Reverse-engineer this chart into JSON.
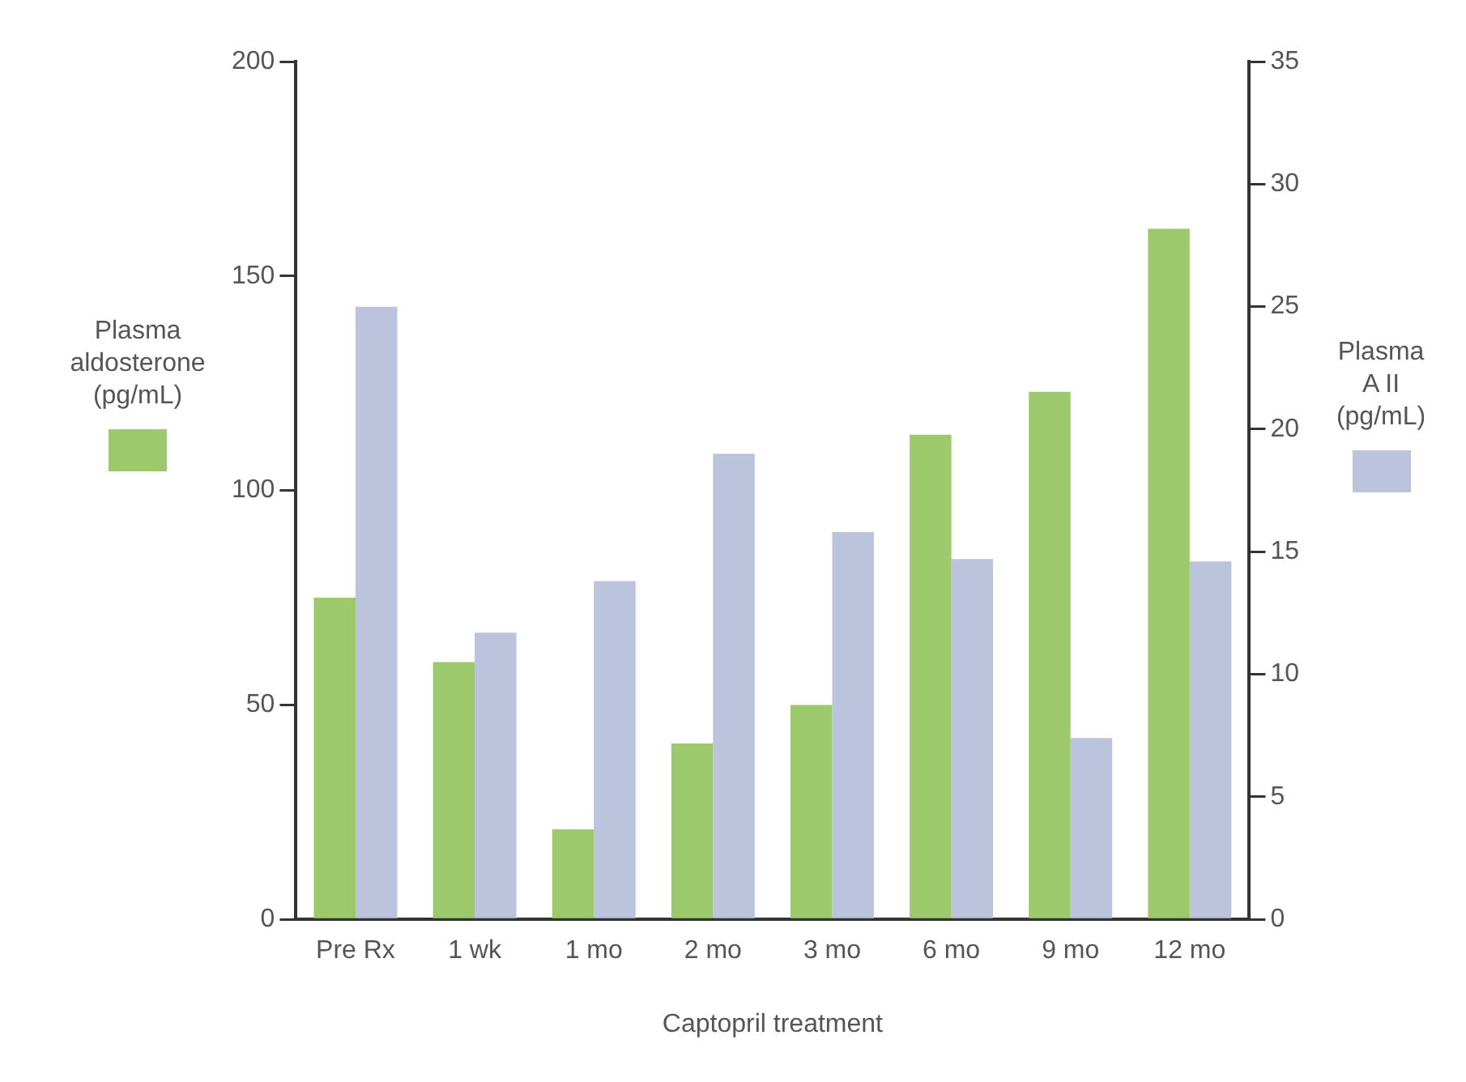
{
  "chart_data": {
    "type": "bar",
    "xlabel": "Captopril treatment",
    "ylabel": "Plasma aldosterone (pg/mL)",
    "y2label": "Plasma A II (pg/mL)",
    "categories": [
      "Pre Rx",
      "1 wk",
      "1 mo",
      "2 mo",
      "3 mo",
      "6 mo",
      "9 mo",
      "12 mo"
    ],
    "series": [
      {
        "color": "#9cc96b",
        "values": [
          75,
          60,
          21,
          41,
          50,
          113,
          123,
          161
        ]
      },
      {
        "color": "#bcc3dc",
        "axis": "y2",
        "values": [
          25,
          11.7,
          13.8,
          19,
          15.8,
          14.7,
          7.4,
          14.6
        ]
      }
    ],
    "ylim": [
      0,
      200
    ],
    "yticks": [
      0,
      50,
      100,
      150,
      200
    ],
    "y2lim": [
      0,
      35
    ],
    "y2ticks": [
      0,
      5,
      10,
      15,
      20,
      25,
      30,
      35
    ],
    "grid": false,
    "legend": false
  }
}
